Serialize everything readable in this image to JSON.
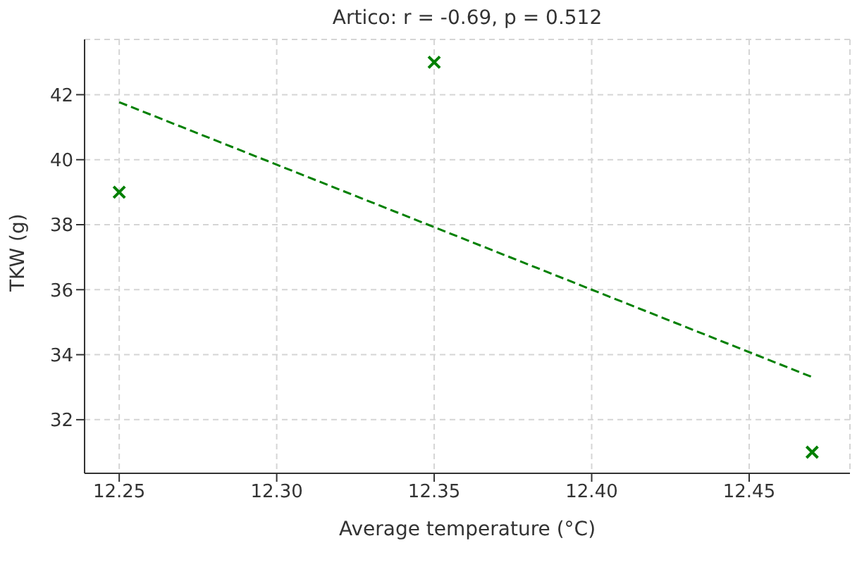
{
  "chart_data": {
    "type": "scatter",
    "title": "Artico: r = -0.69, p = 0.512",
    "xlabel": "Average temperature (°C)",
    "ylabel": "TKW (g)",
    "series": [
      {
        "color": "#008000",
        "x": [
          12.25,
          12.35,
          12.47
        ],
        "values": [
          39,
          43,
          31
        ],
        "marker": "cross"
      },
      {
        "type": "line",
        "color": "#008000",
        "x": [
          12.25,
          12.47
        ],
        "values": [
          41.77,
          33.31
        ],
        "line_style": "dashed",
        "marker": "none"
      }
    ],
    "xlim": [
      12.239,
      12.482
    ],
    "xticks": [
      {
        "value": 12.25,
        "label": "12.25"
      },
      {
        "value": 12.3,
        "label": "12.30"
      },
      {
        "value": 12.35,
        "label": "12.35"
      },
      {
        "value": 12.4,
        "label": "12.40"
      },
      {
        "value": 12.45,
        "label": "12.45"
      }
    ],
    "ylim": [
      30.35,
      43.7
    ],
    "yticks": [
      32,
      34,
      36,
      38,
      40,
      42
    ],
    "grid": true
  }
}
